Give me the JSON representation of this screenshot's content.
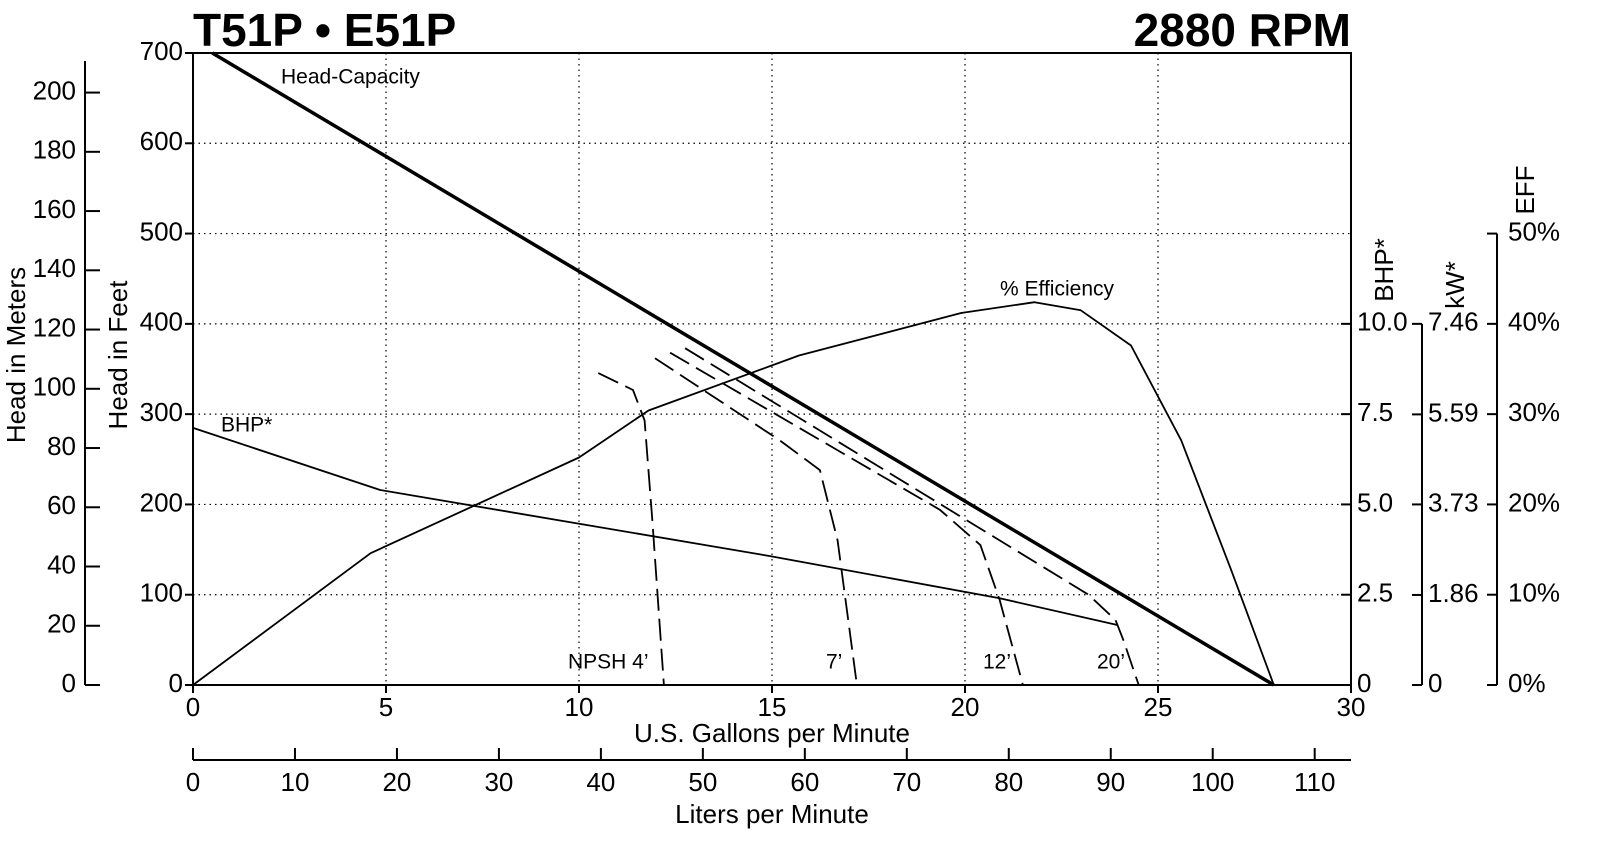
{
  "chart_data": {
    "type": "line",
    "title": "T51P • E51P",
    "subtitle": "2880 RPM",
    "xlabel": "U.S. Gallons per Minute",
    "xlim": [
      0,
      30
    ],
    "xticks": [
      0,
      5,
      10,
      15,
      20,
      25,
      30
    ],
    "ylabel": "Head in Feet",
    "ylim": [
      0,
      700
    ],
    "yticks": [
      0,
      100,
      200,
      300,
      400,
      500,
      600,
      700
    ],
    "grid": true,
    "color": "#000000",
    "axes": {
      "meters": {
        "label": "Head in Meters",
        "lim": [
          0,
          213.36
        ],
        "ticks": [
          0,
          20,
          40,
          60,
          80,
          100,
          120,
          140,
          160,
          180,
          200
        ]
      },
      "liters": {
        "label": "Liters per Minute",
        "lim": [
          0,
          113.56
        ],
        "ticks": [
          0,
          10,
          20,
          30,
          40,
          50,
          60,
          70,
          80,
          90,
          100,
          110
        ]
      },
      "bhp": {
        "label": "BHP*",
        "lim": [
          0,
          17.5
        ],
        "ticks": [
          0,
          2.5,
          {
            "value": 5,
            "label": "5.0"
          },
          7.5,
          {
            "value": 10,
            "label": "10.0"
          }
        ]
      },
      "kw": {
        "label": "kW*",
        "lim": [
          0,
          13.055
        ],
        "ticks": [
          0,
          1.86,
          3.73,
          5.59,
          7.46
        ]
      },
      "eff": {
        "label": "EFF",
        "lim": [
          0,
          70
        ],
        "ticks": [
          {
            "value": 0,
            "label": "0%"
          },
          {
            "value": 10,
            "label": "10%"
          },
          {
            "value": 20,
            "label": "20%"
          },
          {
            "value": 30,
            "label": "30%"
          },
          {
            "value": 40,
            "label": "40%"
          },
          {
            "value": 50,
            "label": "50%"
          }
        ]
      }
    },
    "series": [
      {
        "name": "Head-Capacity",
        "axis": "y",
        "bold": true,
        "dashed": false,
        "x": [
          0.5,
          28
        ],
        "values": [
          700,
          0
        ]
      },
      {
        "name": "% Efficiency",
        "axis": "eff",
        "bold": false,
        "dashed": false,
        "x": [
          0,
          4.6,
          10,
          11.8,
          15.7,
          19.9,
          21.8,
          23,
          24.3,
          25.6,
          26.9,
          28
        ],
        "values": [
          0,
          14.6,
          25.2,
          30.4,
          36.5,
          41.2,
          42.4,
          41.5,
          37.6,
          27.1,
          12.7,
          0
        ]
      },
      {
        "name": "BHP*",
        "axis": "bhp",
        "bold": false,
        "dashed": false,
        "x": [
          0,
          4.85,
          14.95,
          20.9,
          23.96
        ],
        "values": [
          7.12,
          5.4,
          3.57,
          2.4,
          1.66
        ]
      },
      {
        "name": "NPSH 4’",
        "axis": "y",
        "bold": false,
        "dashed": true,
        "x": [
          10.5,
          11.4,
          11.7,
          11.9,
          12.2
        ],
        "values": [
          345.5,
          326.7,
          293,
          183,
          0
        ]
      },
      {
        "name": "7’",
        "axis": "y",
        "bold": false,
        "dashed": true,
        "x": [
          11.97,
          15.2,
          16.24,
          16.7,
          17.2
        ],
        "values": [
          362,
          271,
          238,
          160,
          0
        ]
      },
      {
        "name": "12’",
        "axis": "y",
        "bold": false,
        "dashed": true,
        "x": [
          12.36,
          19.35,
          20.4,
          20.9,
          21.5
        ],
        "values": [
          368,
          194,
          155,
          94,
          0
        ]
      },
      {
        "name": "20’",
        "axis": "y",
        "bold": false,
        "dashed": true,
        "x": [
          12.75,
          23.2,
          23.9,
          24.1,
          24.5
        ],
        "values": [
          373,
          100,
          72,
          50,
          0
        ]
      }
    ]
  }
}
